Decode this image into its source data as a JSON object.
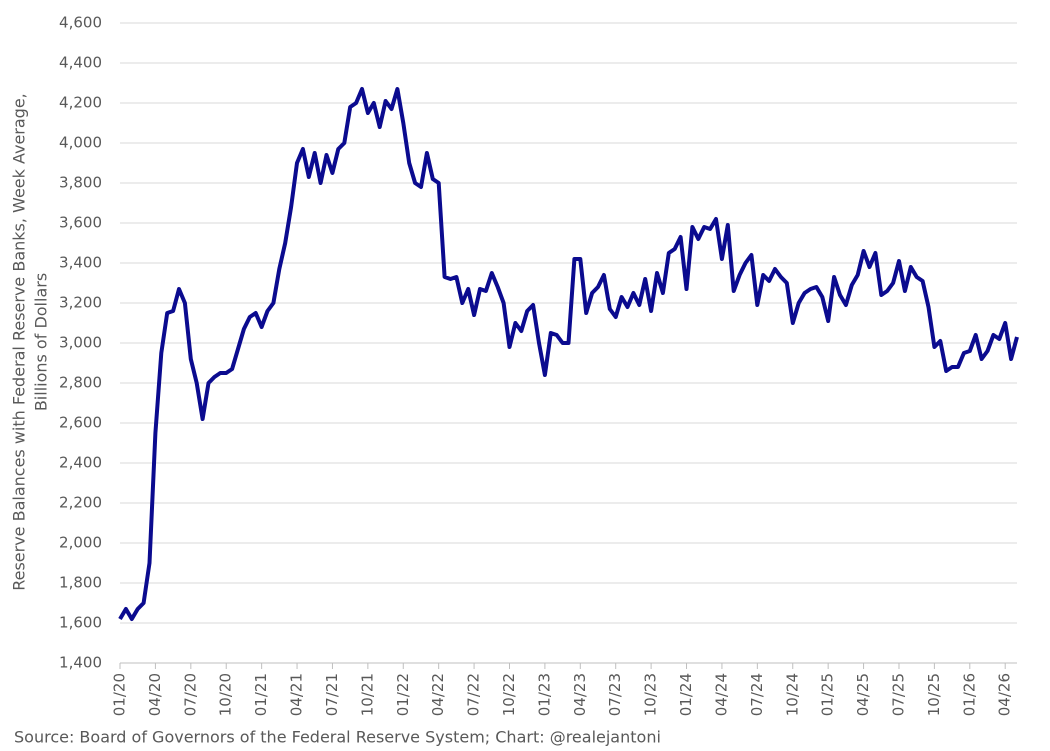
{
  "chart_data": {
    "type": "line",
    "y_label_lines": [
      "Reserve Balances with Federal Reserve Banks, Week Average,",
      "Billions of Dollars"
    ],
    "source": "Source: Board of Governors of the Federal Reserve System; Chart: @realejantoni",
    "categories": [
      "01/20",
      null,
      null,
      null,
      null,
      null,
      "04/20",
      null,
      null,
      null,
      null,
      null,
      "07/20",
      null,
      null,
      null,
      null,
      null,
      "10/20",
      null,
      null,
      null,
      null,
      null,
      "01/21",
      null,
      null,
      null,
      null,
      null,
      "04/21",
      null,
      null,
      null,
      null,
      null,
      "07/21",
      null,
      null,
      null,
      null,
      null,
      "10/21",
      null,
      null,
      null,
      null,
      null,
      "01/22",
      null,
      null,
      null,
      null,
      null,
      "04/22",
      null,
      null,
      null,
      null,
      null,
      "07/22",
      null,
      null,
      null,
      null,
      null,
      "10/22",
      null,
      null,
      null,
      null,
      null,
      "01/23",
      null,
      null,
      null,
      null,
      null,
      "04/23",
      null,
      null,
      null,
      null,
      null,
      "07/23",
      null,
      null,
      null,
      null,
      null,
      "10/23",
      null,
      null,
      null,
      null,
      null,
      "01/24",
      null,
      null,
      null,
      null,
      null,
      "04/24",
      null,
      null,
      null,
      null,
      null,
      "07/24",
      null,
      null,
      null,
      null,
      null,
      "10/24",
      null,
      null,
      null,
      null,
      null,
      "01/25",
      null,
      null,
      null,
      null,
      null,
      "04/25",
      null,
      null,
      null,
      null,
      null,
      "07/25",
      null,
      null,
      null,
      null,
      null,
      "10/25",
      null,
      null,
      null,
      null,
      null,
      "01/26",
      null,
      null,
      null,
      null,
      null,
      "04/26",
      null,
      null
    ],
    "series": [
      {
        "name": "Reserve Balances",
        "color": "#0b0b8f",
        "values": [
          1620,
          1670,
          1620,
          1670,
          1700,
          1900,
          2550,
          2950,
          3150,
          3160,
          3270,
          3200,
          2920,
          2800,
          2620,
          2800,
          2830,
          2850,
          2850,
          2870,
          2970,
          3070,
          3130,
          3150,
          3080,
          3160,
          3200,
          3370,
          3500,
          3680,
          3900,
          3970,
          3830,
          3950,
          3800,
          3940,
          3850,
          3970,
          4000,
          4180,
          4200,
          4270,
          4150,
          4200,
          4080,
          4210,
          4170,
          4270,
          4100,
          3900,
          3800,
          3780,
          3950,
          3820,
          3800,
          3330,
          3320,
          3330,
          3200,
          3270,
          3140,
          3270,
          3260,
          3350,
          3280,
          3200,
          2980,
          3100,
          3060,
          3160,
          3190,
          3000,
          2840,
          3050,
          3040,
          3000,
          3000,
          3420,
          3420,
          3150,
          3250,
          3280,
          3340,
          3170,
          3130,
          3230,
          3180,
          3250,
          3190,
          3320,
          3160,
          3350,
          3250,
          3450,
          3470,
          3530,
          3270,
          3580,
          3520,
          3580,
          3570,
          3620,
          3420,
          3590,
          3260,
          3340,
          3400,
          3440,
          3190,
          3340,
          3310,
          3370,
          3330,
          3300,
          3100,
          3200,
          3250,
          3270,
          3280,
          3230,
          3110,
          3330,
          3240,
          3190,
          3290,
          3340,
          3460,
          3380,
          3450,
          3240,
          3260,
          3300,
          3410,
          3260,
          3380,
          3330,
          3310,
          3180,
          2980,
          3010,
          2860,
          2880,
          2880,
          2950,
          2960,
          3040,
          2920,
          2960,
          3040,
          3020,
          3100,
          2920,
          3030
        ]
      }
    ],
    "ylim": [
      1400,
      4600
    ],
    "yticks": [
      {
        "value": 1400,
        "label": "1,400"
      },
      {
        "value": 1600,
        "label": "1,600"
      },
      {
        "value": 1800,
        "label": "1,800"
      },
      {
        "value": 2000,
        "label": "2,000"
      },
      {
        "value": 2200,
        "label": "2,200"
      },
      {
        "value": 2400,
        "label": "2,400"
      },
      {
        "value": 2600,
        "label": "2,600"
      },
      {
        "value": 2800,
        "label": "2,800"
      },
      {
        "value": 3000,
        "label": "3,000"
      },
      {
        "value": 3200,
        "label": "3,200"
      },
      {
        "value": 3400,
        "label": "3,400"
      },
      {
        "value": 3600,
        "label": "3,600"
      },
      {
        "value": 3800,
        "label": "3,800"
      },
      {
        "value": 4000,
        "label": "4,000"
      },
      {
        "value": 4200,
        "label": "4,200"
      },
      {
        "value": 4400,
        "label": "4,400"
      },
      {
        "value": 4600,
        "label": "4,600"
      }
    ],
    "grid": true
  }
}
